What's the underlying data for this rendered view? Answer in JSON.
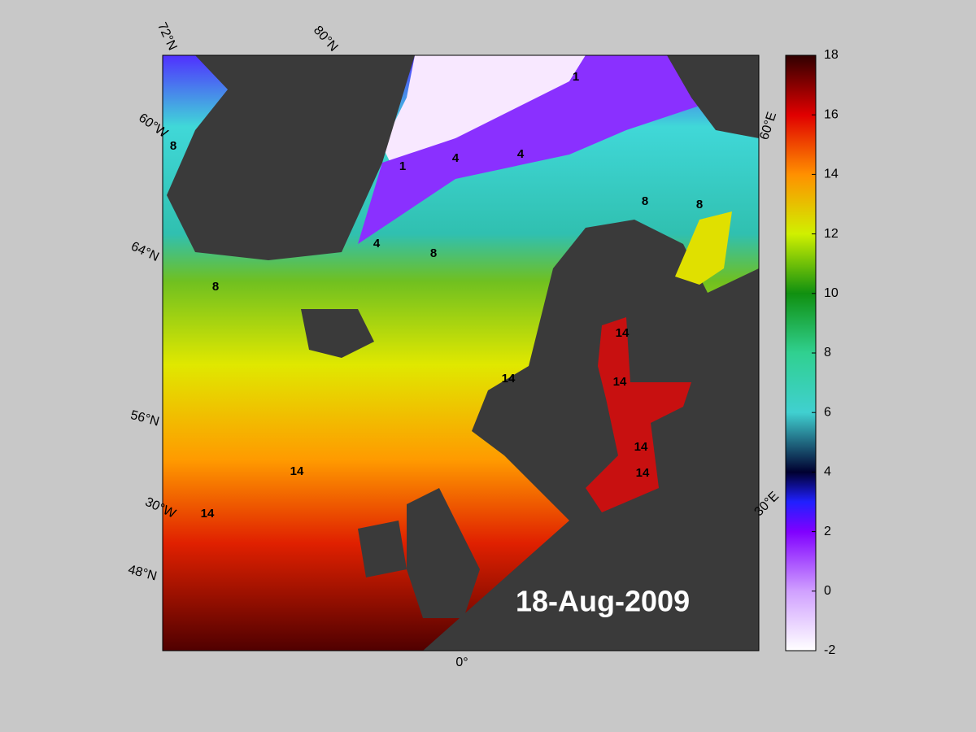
{
  "date_label": "18-Aug-2009",
  "graticule_labels": [
    "72°N",
    "80°N",
    "60°W",
    "64°N",
    "56°N",
    "30°W",
    "48°N",
    "0°",
    "30°E",
    "60°E"
  ],
  "contour_labels": [
    "8",
    "1",
    "4",
    "4",
    "1",
    "4",
    "8",
    "8",
    "8",
    "8",
    "14",
    "14",
    "14",
    "14",
    "14",
    "14",
    "14"
  ],
  "colorbar": {
    "ylim": [
      -2,
      18
    ],
    "yticks": [
      -2,
      0,
      2,
      4,
      6,
      8,
      10,
      12,
      14,
      16,
      18
    ]
  }
}
